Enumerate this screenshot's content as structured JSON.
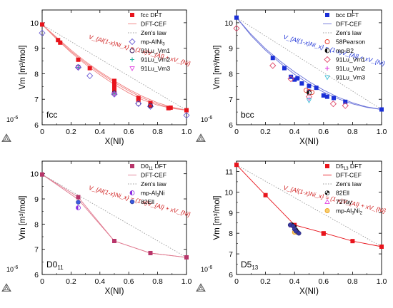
{
  "chart_data": [
    {
      "id": "fcc",
      "type": "scatter",
      "panel_label": "fcc",
      "scale_label": "10-6",
      "xlabel": "X(NI)",
      "ylabel": "Vm [m³/mol]",
      "xlim": [
        0,
        1
      ],
      "ylim": [
        6,
        10.5
      ],
      "xticks": [
        "0",
        "0.2",
        "0.4",
        "0.6",
        "0.8",
        "1.0"
      ],
      "yticks": [
        "6",
        "7",
        "8",
        "9",
        "10"
      ],
      "annotation": "V_{Al(1-x)Ni_x} = (1-x)V_{Al} + xV_{Ni}",
      "legend_position": "top-right",
      "series": [
        {
          "name": "fcc DFT",
          "kind": "marker",
          "marker": "square-filled",
          "color": "#e8141c",
          "points": [
            [
              0,
              9.93
            ],
            [
              0.11,
              9.32
            ],
            [
              0.125,
              9.22
            ],
            [
              0.25,
              8.55
            ],
            [
              0.33,
              8.22
            ],
            [
              0.5,
              7.72
            ],
            [
              0.5,
              7.6
            ],
            [
              0.5,
              7.45
            ],
            [
              0.5,
              7.3
            ],
            [
              0.667,
              7.05
            ],
            [
              0.667,
              6.97
            ],
            [
              0.75,
              6.85
            ],
            [
              0.75,
              6.75
            ],
            [
              0.875,
              6.65
            ],
            [
              0.89,
              6.67
            ],
            [
              1.0,
              6.57
            ]
          ]
        },
        {
          "name": "DFT-CEF",
          "kind": "line",
          "style": "solid",
          "color": "#f08080",
          "curves": [
            [
              [
                0,
                9.93
              ],
              [
                0.1,
                9.4
              ],
              [
                0.2,
                8.88
              ],
              [
                0.3,
                8.43
              ],
              [
                0.4,
                8.03
              ],
              [
                0.5,
                7.66
              ],
              [
                0.6,
                7.33
              ],
              [
                0.7,
                7.04
              ],
              [
                0.8,
                6.81
              ],
              [
                0.9,
                6.66
              ],
              [
                1.0,
                6.57
              ]
            ],
            [
              [
                0,
                9.93
              ],
              [
                0.1,
                9.36
              ],
              [
                0.2,
                8.83
              ],
              [
                0.3,
                8.37
              ],
              [
                0.4,
                7.96
              ],
              [
                0.5,
                7.58
              ],
              [
                0.6,
                7.25
              ],
              [
                0.7,
                6.97
              ],
              [
                0.8,
                6.77
              ],
              [
                0.9,
                6.64
              ],
              [
                1.0,
                6.57
              ]
            ],
            [
              [
                0,
                9.93
              ],
              [
                0.1,
                9.43
              ],
              [
                0.2,
                8.93
              ],
              [
                0.3,
                8.48
              ],
              [
                0.4,
                8.08
              ],
              [
                0.5,
                7.72
              ],
              [
                0.6,
                7.39
              ],
              [
                0.7,
                7.1
              ],
              [
                0.8,
                6.86
              ],
              [
                0.9,
                6.69
              ],
              [
                1.0,
                6.57
              ]
            ]
          ]
        },
        {
          "name": "Zen's law",
          "kind": "line",
          "style": "dotted",
          "color": "#999999",
          "curves": [
            [
              [
                0,
                9.93
              ],
              [
                1.0,
                6.57
              ]
            ]
          ]
        },
        {
          "name": "mp-AlNi3",
          "legend_label": "mp-AlNi",
          "legend_sub": "3",
          "kind": "marker",
          "marker": "diamond-open",
          "color": "#6d5fd5",
          "points": [
            [
              0,
              9.6
            ],
            [
              0.75,
              6.72
            ]
          ]
        },
        {
          "name": "91Lu_Vm1",
          "kind": "marker",
          "marker": "circle-open",
          "color": "#3c1a5c",
          "points": [
            [
              0.25,
              8.27
            ],
            [
              0.5,
              7.25
            ],
            [
              0.667,
              6.83
            ],
            [
              0.75,
              6.75
            ]
          ]
        },
        {
          "name": "91Lu_Vm2",
          "kind": "marker",
          "marker": "plus",
          "color": "#22b0a0",
          "points": [
            [
              0.25,
              8.25
            ],
            [
              0.5,
              7.22
            ]
          ]
        },
        {
          "name": "91Lu_Vm3",
          "kind": "marker",
          "marker": "triangle-down-open",
          "color": "#e040e0",
          "points": [
            [
              0.25,
              8.23
            ],
            [
              0.5,
              7.2
            ]
          ]
        },
        {
          "name": "Al-side diamonds",
          "legend": false,
          "kind": "marker",
          "marker": "diamond-open",
          "color": "#6d5fd5",
          "points": [
            [
              0.25,
              8.25
            ],
            [
              0.33,
              7.92
            ],
            [
              0.5,
              7.2
            ],
            [
              0.667,
              6.83
            ],
            [
              1.0,
              6.37
            ]
          ]
        }
      ]
    },
    {
      "id": "bcc",
      "type": "scatter",
      "panel_label": "bcc",
      "scale_label": "10-6",
      "xlabel": "X(NI)",
      "ylabel": "Vm [m³/mol]",
      "xlim": [
        0,
        1
      ],
      "ylim": [
        6,
        10.5
      ],
      "xticks": [
        "0",
        "0.2",
        "0.4",
        "0.6",
        "0.8",
        "1.0"
      ],
      "yticks": [
        "6",
        "7",
        "8",
        "9",
        "10"
      ],
      "annotation": "V_{Al(1-x)Ni_x} = (1-x)V_{Al} + xV_{Ni}",
      "legend_position": "top-right",
      "series": [
        {
          "name": "bcc DFT",
          "kind": "marker",
          "marker": "square-filled",
          "color": "#1a2fd6",
          "points": [
            [
              0,
              10.2
            ],
            [
              0.25,
              8.62
            ],
            [
              0.33,
              8.22
            ],
            [
              0.375,
              7.88
            ],
            [
              0.4,
              7.77
            ],
            [
              0.42,
              7.82
            ],
            [
              0.45,
              7.62
            ],
            [
              0.5,
              7.52
            ],
            [
              0.5,
              7.3
            ],
            [
              0.55,
              7.45
            ],
            [
              0.6,
              7.15
            ],
            [
              0.625,
              7.1
            ],
            [
              0.67,
              7.05
            ],
            [
              0.75,
              6.9
            ],
            [
              1.0,
              6.6
            ]
          ]
        },
        {
          "name": "DFT-CEF",
          "kind": "line",
          "style": "solid",
          "color": "#6a72d8",
          "curves": [
            [
              [
                0,
                10.2
              ],
              [
                0.1,
                9.55
              ],
              [
                0.2,
                8.98
              ],
              [
                0.3,
                8.5
              ],
              [
                0.4,
                8.07
              ],
              [
                0.5,
                7.69
              ],
              [
                0.6,
                7.36
              ],
              [
                0.7,
                7.08
              ],
              [
                0.8,
                6.86
              ],
              [
                0.9,
                6.7
              ],
              [
                1.0,
                6.6
              ]
            ],
            [
              [
                0,
                10.2
              ],
              [
                0.1,
                9.5
              ],
              [
                0.2,
                8.92
              ],
              [
                0.3,
                8.42
              ],
              [
                0.4,
                7.98
              ],
              [
                0.5,
                7.6
              ],
              [
                0.6,
                7.28
              ],
              [
                0.7,
                7.02
              ],
              [
                0.8,
                6.82
              ],
              [
                0.9,
                6.68
              ],
              [
                1.0,
                6.6
              ]
            ]
          ]
        },
        {
          "name": "Zen's law",
          "kind": "line",
          "style": "dotted",
          "color": "#999999",
          "curves": [
            [
              [
                0,
                10.2
              ],
              [
                1.0,
                6.6
              ]
            ]
          ]
        },
        {
          "name": "58Pearson",
          "kind": "marker",
          "marker": "circle-open",
          "color": "#e83a2a",
          "points": [
            [
              0.48,
              7.35
            ],
            [
              0.5,
              7.3
            ],
            [
              0.52,
              7.27
            ]
          ]
        },
        {
          "name": "mp-B2",
          "kind": "marker",
          "marker": "half-circle",
          "color": "#111111",
          "points": [
            [
              0.5,
              7.25
            ]
          ]
        },
        {
          "name": "91Lu_Vm1",
          "kind": "marker",
          "marker": "diamond-open",
          "color": "#e04a6a",
          "points": [
            [
              0,
              9.78
            ],
            [
              0.25,
              8.32
            ],
            [
              0.375,
              7.8
            ],
            [
              0.5,
              7.1
            ],
            [
              0.667,
              6.82
            ],
            [
              0.75,
              6.75
            ]
          ]
        },
        {
          "name": "91Lu_Vm2",
          "kind": "marker",
          "marker": "plus",
          "color": "#e040e0",
          "points": [
            [
              0.5,
              7.02
            ]
          ]
        },
        {
          "name": "91Lu_Vm3",
          "kind": "marker",
          "marker": "triangle-down-open",
          "color": "#3cc0d8",
          "points": [
            [
              0.5,
              6.95
            ]
          ]
        }
      ]
    },
    {
      "id": "D011",
      "type": "scatter",
      "panel_label": "D0",
      "panel_label_sub": "11",
      "scale_label": "10-6",
      "xlabel": "X(NI)",
      "ylabel": "Vm [m³/mol]",
      "xlim": [
        0,
        1
      ],
      "ylim": [
        6,
        10.5
      ],
      "xticks": [
        "0",
        "0.2",
        "0.4",
        "0.6",
        "0.8",
        "1.0"
      ],
      "yticks": [
        "6",
        "7",
        "8",
        "9",
        "10"
      ],
      "annotation": "V_{Al(1-x)Ni_x} = (1-x)V_{Al} + xV_{Ni}",
      "legend_position": "top-right",
      "series": [
        {
          "name": "D0₁₁ DFT",
          "legend_label": "D0",
          "legend_sub": "11",
          "legend_tail": " DFT",
          "kind": "marker",
          "marker": "square-filled",
          "color": "#b8356a",
          "points": [
            [
              0,
              9.97
            ],
            [
              0.25,
              9.07
            ],
            [
              0.5,
              7.33
            ],
            [
              0.75,
              6.85
            ],
            [
              1.0,
              6.68
            ]
          ]
        },
        {
          "name": "DFT-CEF",
          "kind": "line",
          "style": "solid",
          "color": "#e07a90",
          "curves": [
            [
              [
                0,
                9.97
              ],
              [
                0.25,
                9.07
              ],
              [
                0.5,
                7.33
              ],
              [
                0.75,
                6.85
              ],
              [
                1.0,
                6.68
              ]
            ],
            [
              [
                0,
                9.97
              ],
              [
                0.25,
                8.98
              ],
              [
                0.5,
                7.33
              ],
              [
                0.75,
                6.85
              ],
              [
                1.0,
                6.68
              ]
            ]
          ]
        },
        {
          "name": "Zen's law",
          "kind": "line",
          "style": "dotted",
          "color": "#999999",
          "curves": [
            [
              [
                0,
                9.97
              ],
              [
                1.0,
                6.68
              ]
            ]
          ]
        },
        {
          "name": "mp-Al3Ni",
          "legend_label": "mp-Al",
          "legend_sub": "3",
          "legend_tail": "Ni",
          "kind": "marker",
          "marker": "half-circle-purple",
          "color": "#8a2be2",
          "points": [
            [
              0.25,
              8.65
            ]
          ]
        },
        {
          "name": "82Ell",
          "kind": "marker",
          "marker": "circle-filled-blue",
          "color": "#3a5adf",
          "points": [
            [
              0.25,
              8.87
            ]
          ]
        }
      ]
    },
    {
      "id": "D513",
      "type": "scatter",
      "panel_label": "D5",
      "panel_label_sub": "13",
      "scale_label": "10-6",
      "xlabel": "X(NI)",
      "ylabel": "Vm [m³/mol]",
      "xlim": [
        0,
        1
      ],
      "ylim": [
        6,
        11.5
      ],
      "xticks": [
        "0",
        "0.2",
        "0.4",
        "0.6",
        "0.8",
        "1.0"
      ],
      "yticks": [
        "6",
        "7",
        "8",
        "9",
        "10",
        "11"
      ],
      "annotation": "V_{Al(1-x)Ni_x} = (1-x)V_{Al} + xV_{Ni}",
      "legend_position": "top-right",
      "series": [
        {
          "name": "D5₁₃ DFT",
          "legend_label": "D5",
          "legend_sub": "13",
          "legend_tail": " DFT",
          "kind": "marker",
          "marker": "square-filled",
          "color": "#e8141c",
          "points": [
            [
              0,
              11.32
            ],
            [
              0.2,
              9.85
            ],
            [
              0.4,
              8.4
            ],
            [
              0.6,
              8.0
            ],
            [
              0.6,
              7.98
            ],
            [
              0.8,
              7.62
            ],
            [
              1.0,
              7.35
            ]
          ]
        },
        {
          "name": "DFT-CEF",
          "kind": "line",
          "style": "solid",
          "color": "#e8141c",
          "curves": [
            [
              [
                0,
                11.32
              ],
              [
                0.2,
                9.85
              ],
              [
                0.4,
                8.4
              ],
              [
                0.6,
                8.02
              ],
              [
                0.8,
                7.62
              ],
              [
                1.0,
                7.35
              ]
            ]
          ]
        },
        {
          "name": "Zen's law",
          "kind": "line",
          "style": "dotted",
          "color": "#999999",
          "curves": [
            [
              [
                0,
                11.32
              ],
              [
                1.0,
                7.35
              ]
            ]
          ]
        },
        {
          "name": "82Ell",
          "kind": "marker",
          "marker": "pinwheel",
          "color": "#111111",
          "points": [
            [
              0.38,
              8.42
            ],
            [
              0.4,
              8.3
            ],
            [
              0.41,
              8.15
            ],
            [
              0.42,
              8.05
            ]
          ]
        },
        {
          "name": "72Tay",
          "kind": "marker",
          "marker": "triangle-open",
          "color": "#e040e0",
          "points": [
            [
              0.38,
              8.38
            ],
            [
              0.4,
              8.25
            ]
          ]
        },
        {
          "name": "mp-Al3Ni2",
          "legend_label": "mp-Al",
          "legend_sub": "3",
          "legend_tail": "Ni",
          "legend_sub2": "2",
          "kind": "marker",
          "marker": "circle-orange",
          "color": "#f0a020",
          "points": [
            [
              0.4,
              8.05
            ]
          ]
        },
        {
          "name": "cluster",
          "legend": false,
          "kind": "marker",
          "marker": "circle-filled-blue",
          "color": "#3a3aa0",
          "points": [
            [
              0.37,
              8.4
            ],
            [
              0.39,
              8.35
            ],
            [
              0.4,
              8.2
            ],
            [
              0.41,
              8.1
            ],
            [
              0.43,
              8.0
            ]
          ]
        }
      ]
    }
  ]
}
